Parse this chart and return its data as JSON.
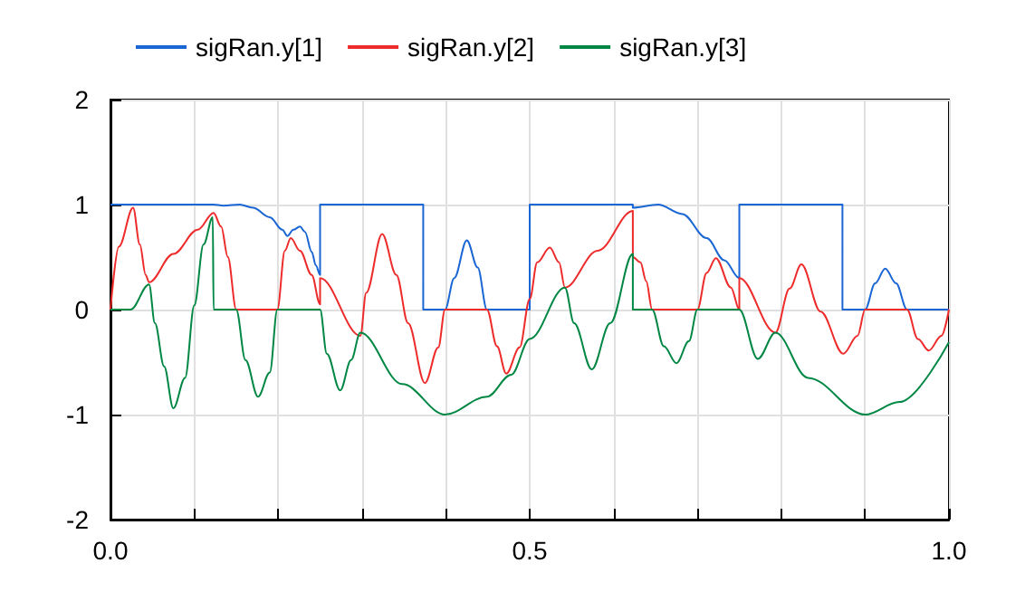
{
  "chart_data": {
    "type": "line",
    "xlim": [
      0,
      1
    ],
    "ylim": [
      -2,
      2
    ],
    "xticks": [
      {
        "value": 0,
        "label": "0.0"
      },
      {
        "value": 0.1,
        "label": null
      },
      {
        "value": 0.2,
        "label": null
      },
      {
        "value": 0.3,
        "label": null
      },
      {
        "value": 0.4,
        "label": null
      },
      {
        "value": 0.5,
        "label": "0.5"
      },
      {
        "value": 0.6,
        "label": null
      },
      {
        "value": 0.7,
        "label": null
      },
      {
        "value": 0.8,
        "label": null
      },
      {
        "value": 0.9,
        "label": null
      },
      {
        "value": 1,
        "label": "1.0"
      }
    ],
    "yticks": [
      -2,
      -1,
      0,
      1,
      2
    ],
    "grid": true,
    "legend": "top",
    "marker": "none",
    "line_style": "solid",
    "series": [
      {
        "name": "sigRan.y[1]",
        "color": "#1a66d4",
        "x": [
          0,
          0.123,
          0.135,
          0.154,
          0.17,
          0.19,
          0.205,
          0.211,
          0.218,
          0.226,
          0.232,
          0.24,
          0.245,
          0.25,
          0.25,
          0.373,
          0.373,
          0.399,
          0.41,
          0.425,
          0.438,
          0.449,
          0.5,
          0.5,
          0.623,
          0.623,
          0.653,
          0.682,
          0.711,
          0.732,
          0.75,
          0.75,
          0.873,
          0.873,
          0.9,
          0.912,
          0.924,
          0.937,
          0.95,
          1
        ],
        "values": [
          1,
          1,
          0.99,
          1,
          0.97,
          0.88,
          0.76,
          0.7,
          0.76,
          0.79,
          0.74,
          0.55,
          0.42,
          0.33,
          1,
          1,
          0,
          0,
          0.3,
          0.66,
          0.4,
          0,
          0,
          1,
          1,
          0.97,
          1,
          0.91,
          0.68,
          0.47,
          0.3,
          1,
          1,
          0,
          0,
          0.25,
          0.39,
          0.25,
          0,
          0
        ]
      },
      {
        "name": "sigRan.y[2]",
        "color": "#ee2b2b",
        "x": [
          0,
          0.01,
          0.027,
          0.035,
          0.042,
          0.046,
          0.075,
          0.104,
          0.123,
          0.132,
          0.14,
          0.15,
          0.199,
          0.208,
          0.215,
          0.226,
          0.24,
          0.25,
          0.25,
          0.298,
          0.305,
          0.324,
          0.341,
          0.355,
          0.375,
          0.391,
          0.399,
          0.449,
          0.461,
          0.472,
          0.488,
          0.5,
          0.509,
          0.524,
          0.535,
          0.542,
          0.581,
          0.623,
          0.623,
          0.632,
          0.639,
          0.646,
          0.7,
          0.711,
          0.722,
          0.74,
          0.75,
          0.75,
          0.793,
          0.81,
          0.824,
          0.847,
          0.874,
          0.891,
          0.9,
          0.95,
          0.963,
          0.976,
          0.991,
          1
        ],
        "values": [
          0,
          0.6,
          0.97,
          0.62,
          0.33,
          0.26,
          0.53,
          0.76,
          0.92,
          0.79,
          0.5,
          0,
          0,
          0.56,
          0.68,
          0.56,
          0.33,
          0.05,
          0.3,
          -0.25,
          0.16,
          0.72,
          0.33,
          -0.13,
          -0.7,
          -0.36,
          0,
          0,
          -0.35,
          -0.61,
          -0.36,
          0.1,
          0.45,
          0.59,
          0.45,
          0.21,
          0.56,
          0.94,
          0.5,
          0.45,
          0.27,
          0,
          0,
          0.35,
          0.49,
          0.21,
          0,
          0.3,
          -0.22,
          0.2,
          0.43,
          -0.02,
          -0.42,
          -0.25,
          0,
          0,
          -0.28,
          -0.39,
          -0.25,
          0
        ]
      },
      {
        "name": "sigRan.y[3]",
        "color": "#008744",
        "x": [
          0,
          0.024,
          0.046,
          0.053,
          0.064,
          0.075,
          0.089,
          0.1,
          0.111,
          0.122,
          0.123,
          0.15,
          0.161,
          0.176,
          0.19,
          0.199,
          0.25,
          0.258,
          0.274,
          0.287,
          0.298,
          0.348,
          0.399,
          0.449,
          0.478,
          0.5,
          0.542,
          0.553,
          0.574,
          0.596,
          0.623,
          0.623,
          0.646,
          0.66,
          0.675,
          0.69,
          0.7,
          0.75,
          0.772,
          0.793,
          0.832,
          0.9,
          0.941,
          1
        ],
        "values": [
          0,
          0,
          0.24,
          -0.13,
          -0.54,
          -0.94,
          -0.65,
          0.04,
          0.62,
          0.88,
          0,
          0,
          -0.48,
          -0.83,
          -0.6,
          0,
          0,
          -0.42,
          -0.77,
          -0.48,
          -0.22,
          -0.71,
          -1,
          -0.83,
          -0.62,
          -0.28,
          0.21,
          -0.13,
          -0.57,
          -0.13,
          0.53,
          0,
          0,
          -0.35,
          -0.51,
          -0.3,
          0,
          0,
          -0.47,
          -0.22,
          -0.65,
          -1,
          -0.88,
          -0.31
        ]
      }
    ]
  }
}
